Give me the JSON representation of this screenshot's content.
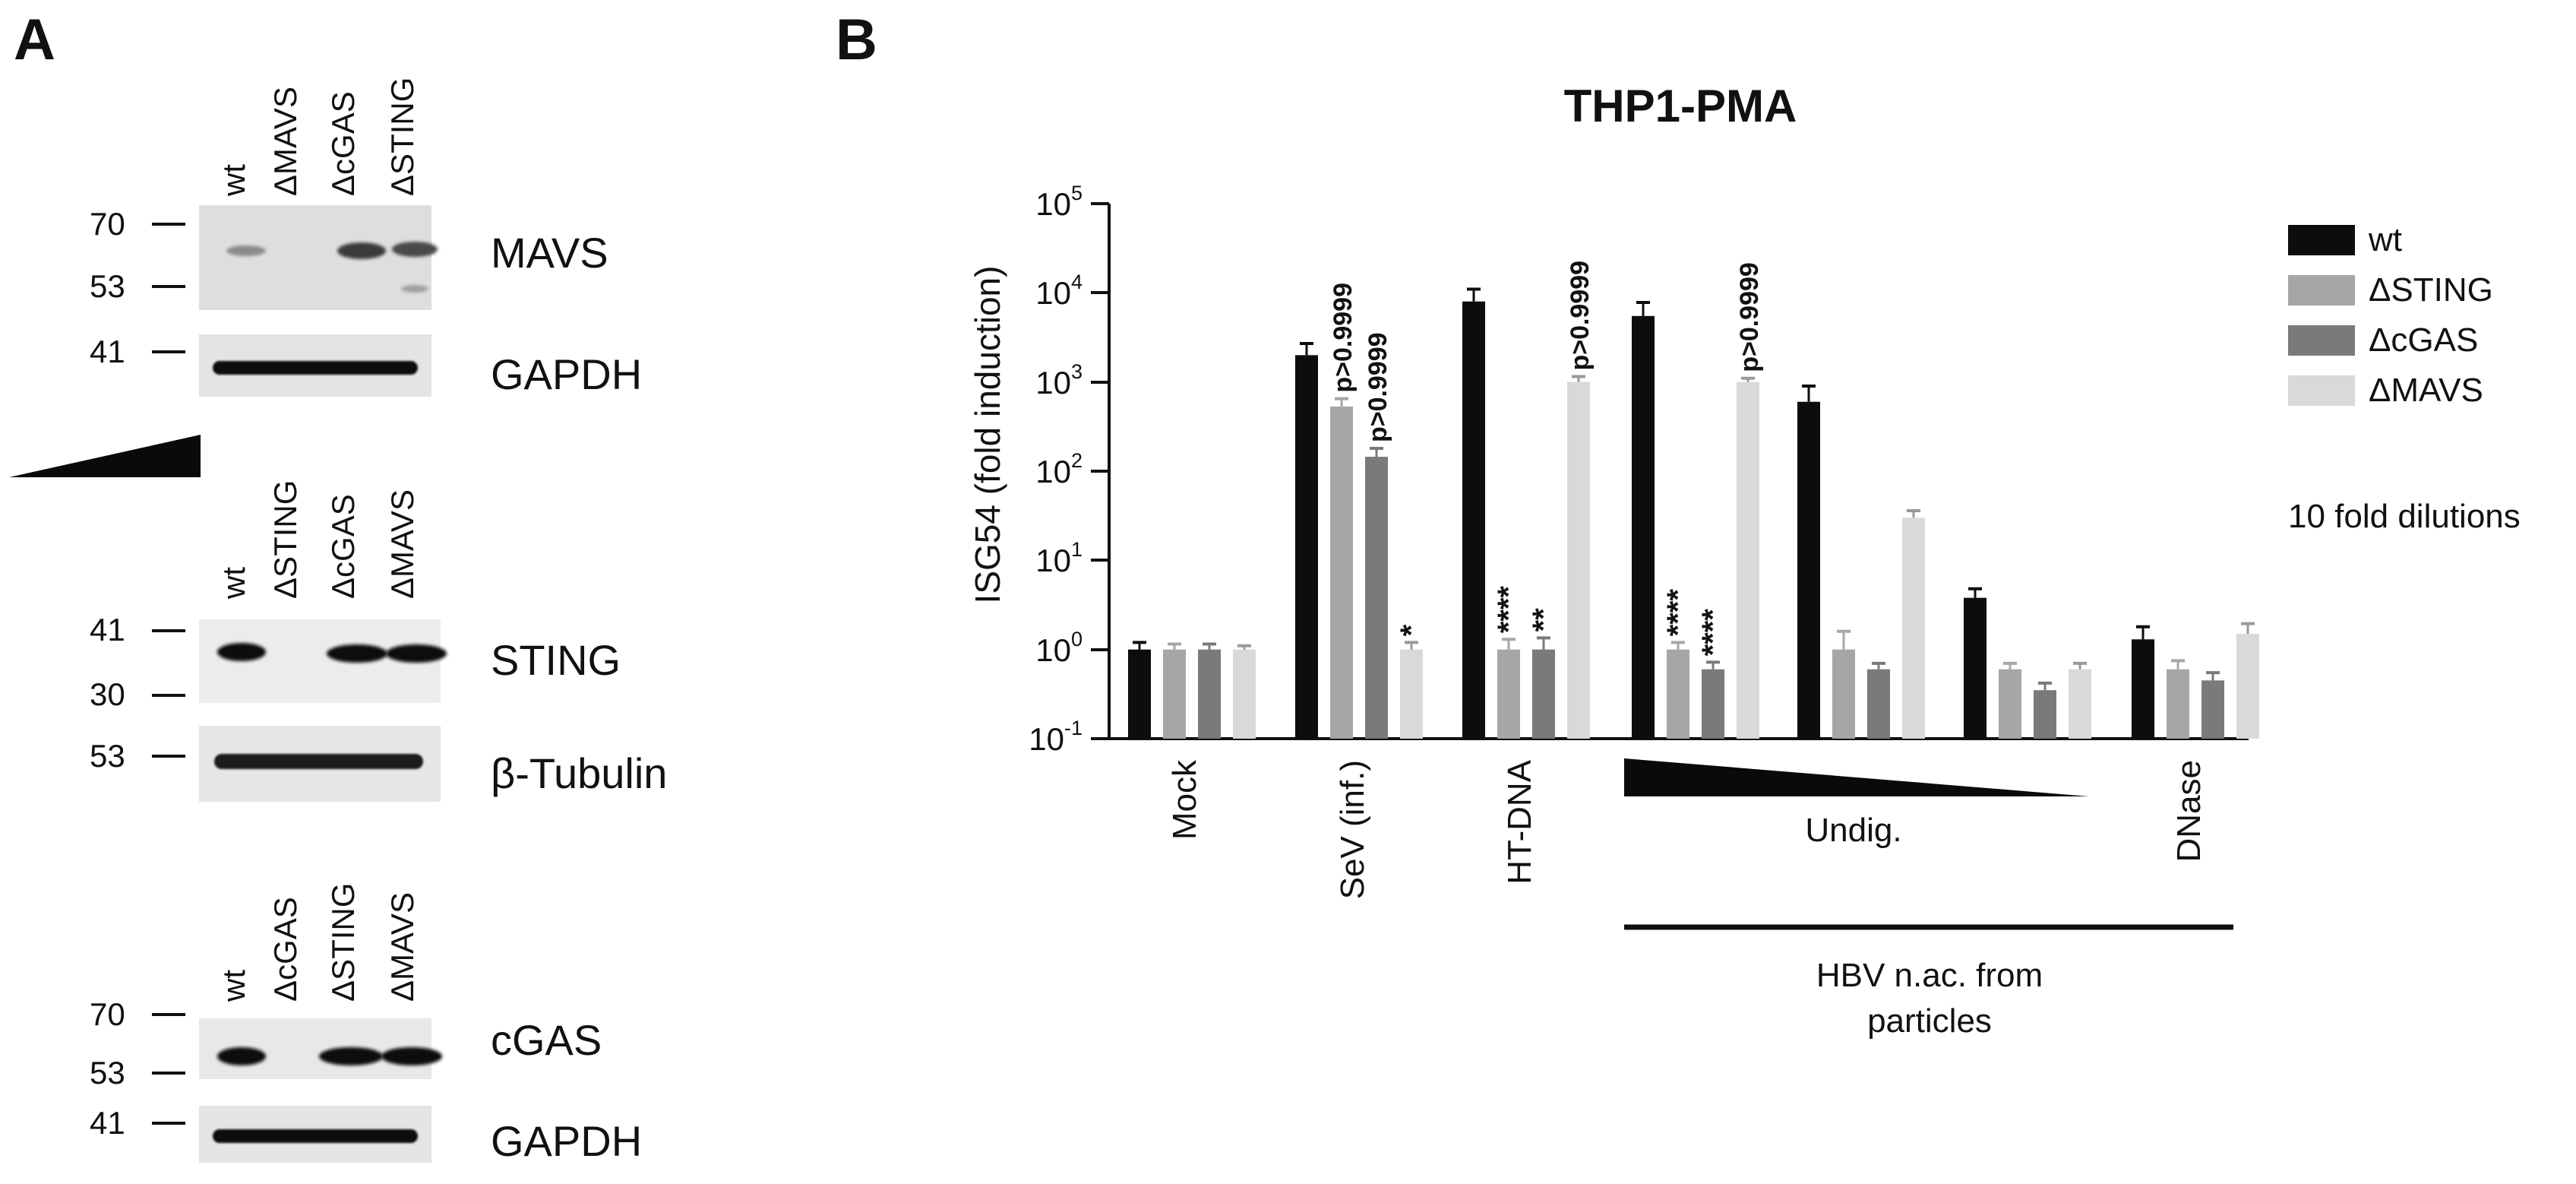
{
  "panel_a": {
    "label": "A",
    "blots": [
      {
        "lanes": [
          "wt",
          "ΔMAVS",
          "ΔcGAS",
          "ΔSTING"
        ],
        "rows": [
          {
            "name": "MAVS",
            "markers": [
              "70",
              "53"
            ]
          },
          {
            "name": "GAPDH",
            "markers": [
              "41"
            ]
          }
        ]
      },
      {
        "lanes": [
          "wt",
          "ΔSTING",
          "ΔcGAS",
          "ΔMAVS"
        ],
        "rows": [
          {
            "name": "STING",
            "markers": [
              "41",
              "30"
            ]
          },
          {
            "name": "β-Tubulin",
            "markers": [
              "53"
            ]
          }
        ]
      },
      {
        "lanes": [
          "wt",
          "ΔcGAS",
          "ΔSTING",
          "ΔMAVS"
        ],
        "rows": [
          {
            "name": "cGAS",
            "markers": [
              "70",
              "53"
            ]
          },
          {
            "name": "GAPDH",
            "markers": [
              "41"
            ]
          }
        ]
      }
    ]
  },
  "panel_b": {
    "label": "B"
  },
  "colors": {
    "wt": "#0d0d0d",
    "sting": "#a6a6a6",
    "cgas": "#7a7a7a",
    "mavs": "#d9d9d9"
  },
  "chart_data": {
    "type": "bar",
    "title": "THP1-PMA",
    "ylabel": "ISG54 (fold induction)",
    "yscale": "log",
    "ylim": [
      0.1,
      100000
    ],
    "yticks": [
      {
        "base": "10",
        "exp": "5"
      },
      {
        "base": "10",
        "exp": "4"
      },
      {
        "base": "10",
        "exp": "3"
      },
      {
        "base": "10",
        "exp": "2"
      },
      {
        "base": "10",
        "exp": "1"
      },
      {
        "base": "10",
        "exp": "0"
      },
      {
        "base": "10",
        "exp": "-1"
      }
    ],
    "categories": [
      "Mock",
      "SeV (inf.)",
      "HT-DNA",
      "Undig. 1",
      "Undig. 2",
      "Undig. 3",
      "DNase"
    ],
    "category_labels": [
      "Mock",
      "SeV (inf.)",
      "HT-DNA",
      "Undig.",
      "DNase"
    ],
    "group_labels": [
      "HBV n.ac. from",
      "particles"
    ],
    "series": [
      {
        "name": "wt",
        "values": [
          1.0,
          2000,
          8000,
          5500,
          600,
          3.8,
          1.3
        ],
        "errors": [
          1.2,
          2700,
          11000,
          7800,
          900,
          4.8,
          1.8
        ]
      },
      {
        "name": "ΔSTING",
        "values": [
          1.0,
          530,
          1.0,
          1.0,
          1.0,
          0.6,
          0.6
        ],
        "errors": [
          1.15,
          650,
          1.3,
          1.2,
          1.6,
          0.7,
          0.75
        ]
      },
      {
        "name": "ΔcGAS",
        "values": [
          1.0,
          145,
          1.0,
          0.6,
          0.6,
          0.35,
          0.45
        ],
        "errors": [
          1.15,
          180,
          1.35,
          0.72,
          0.7,
          0.42,
          0.55
        ]
      },
      {
        "name": "ΔMAVS",
        "values": [
          1.0,
          1.0,
          1000,
          1000,
          30,
          0.6,
          1.5
        ],
        "errors": [
          1.1,
          1.2,
          1150,
          1100,
          36,
          0.7,
          1.95
        ]
      }
    ],
    "annotations": [
      {
        "category": "SeV (inf.)",
        "series": "ΔSTING",
        "text": "p>0.9999"
      },
      {
        "category": "SeV (inf.)",
        "series": "ΔcGAS",
        "text": "p>0.9999"
      },
      {
        "category": "SeV (inf.)",
        "series": "ΔMAVS",
        "text": "*"
      },
      {
        "category": "HT-DNA",
        "series": "ΔSTING",
        "text": "****"
      },
      {
        "category": "HT-DNA",
        "series": "ΔcGAS",
        "text": "**"
      },
      {
        "category": "HT-DNA",
        "series": "ΔMAVS",
        "text": "p>0.9999"
      },
      {
        "category": "Undig. 1",
        "series": "ΔSTING",
        "text": "****"
      },
      {
        "category": "Undig. 1",
        "series": "ΔcGAS",
        "text": "****"
      },
      {
        "category": "Undig. 1",
        "series": "ΔMAVS",
        "text": "p>0.9999"
      }
    ],
    "legend": {
      "position": "right",
      "entries": [
        "wt",
        "ΔSTING",
        "ΔcGAS",
        "ΔMAVS"
      ],
      "dilution_label": "10 fold dilutions"
    }
  }
}
